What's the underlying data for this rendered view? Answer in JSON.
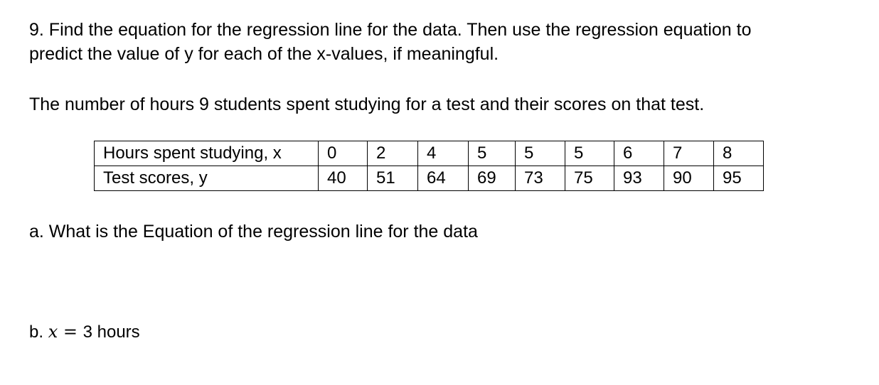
{
  "question": {
    "line1": "9. Find the equation for the regression line for the data. Then use the regression equation to",
    "line2": "predict the value of y for each of the x-values, if meaningful."
  },
  "intro": "The number of hours 9 students spent studying for a test and their scores on that test.",
  "table": {
    "rows": [
      {
        "label": "Hours spent studying, x",
        "values": [
          "0",
          "2",
          "4",
          "5",
          "5",
          "5",
          "6",
          "7",
          "8"
        ]
      },
      {
        "label": "Test scores, y",
        "values": [
          "40",
          "51",
          "64",
          "69",
          "73",
          "75",
          "93",
          "90",
          "95"
        ]
      }
    ]
  },
  "part_a": "a. What is the Equation of the regression line for the data",
  "part_b": {
    "prefix": "b. ",
    "variable": "x",
    "operator": " = ",
    "value": "3 hours"
  }
}
